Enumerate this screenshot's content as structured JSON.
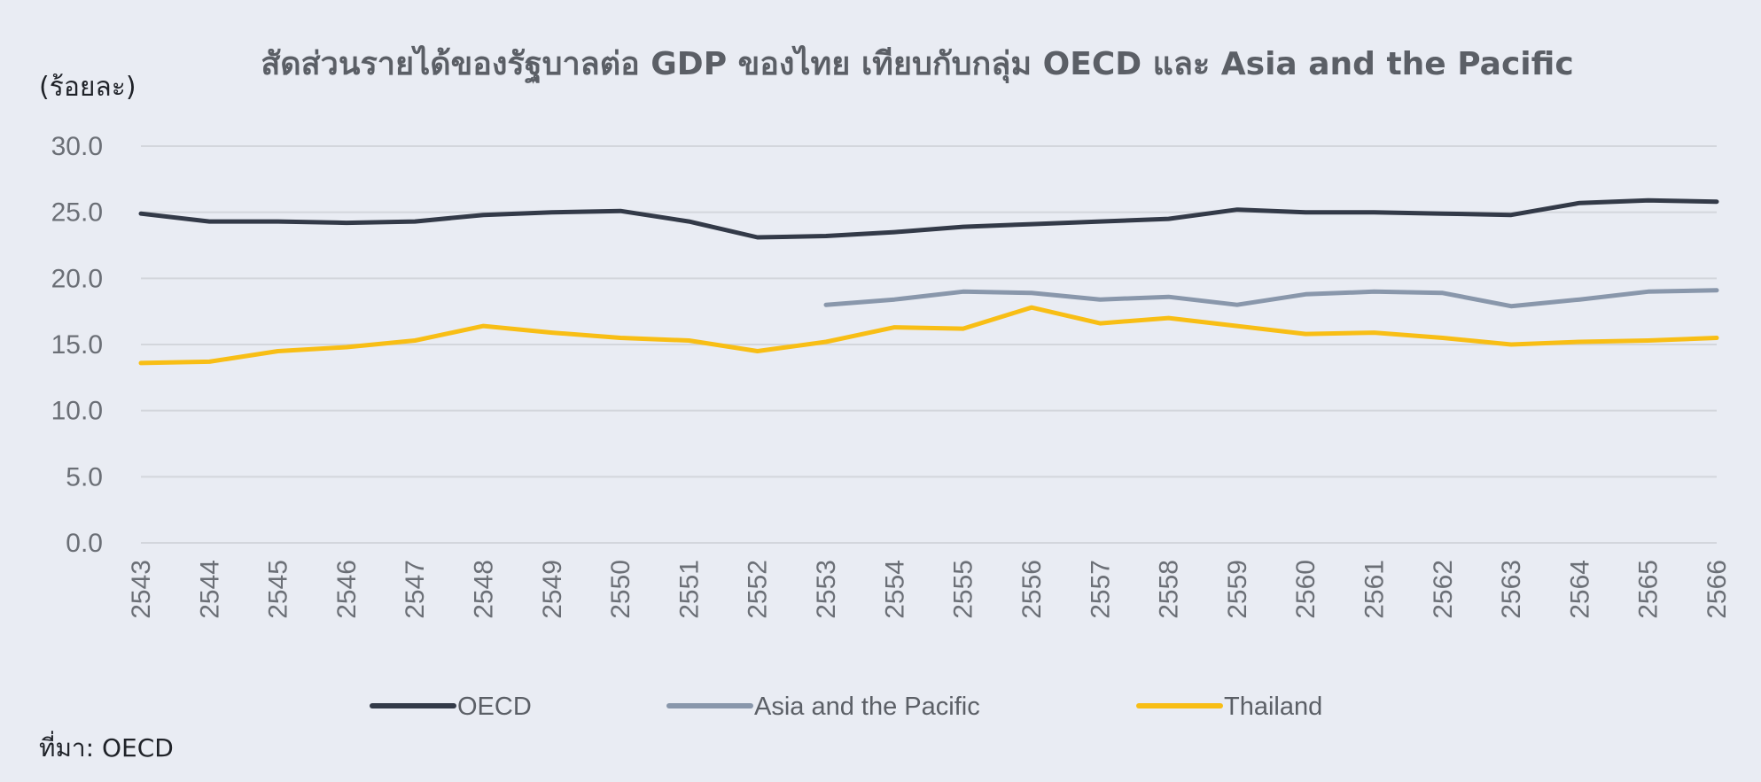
{
  "chart_data": {
    "type": "line",
    "title": "สัดส่วนรายได้ของรัฐบาลต่อ GDP ของไทย เทียบกับกลุ่ม OECD และ Asia and the Pacific",
    "ylabel": "(ร้อยละ)",
    "xlabel": "",
    "ylim": [
      0,
      30
    ],
    "yticks": [
      "0.0",
      "5.0",
      "10.0",
      "15.0",
      "20.0",
      "25.0",
      "30.0"
    ],
    "grid": true,
    "legend_position": "bottom",
    "categories": [
      "2543",
      "2544",
      "2545",
      "2546",
      "2547",
      "2548",
      "2549",
      "2550",
      "2551",
      "2552",
      "2553",
      "2554",
      "2555",
      "2556",
      "2557",
      "2558",
      "2559",
      "2560",
      "2561",
      "2562",
      "2563",
      "2564",
      "2565",
      "2566"
    ],
    "series": [
      {
        "name": "OECD",
        "color": "#333a48",
        "values": [
          24.9,
          24.3,
          24.3,
          24.2,
          24.3,
          24.8,
          25.0,
          25.1,
          24.3,
          23.1,
          23.2,
          23.5,
          23.9,
          24.1,
          24.3,
          24.5,
          25.2,
          25.0,
          25.0,
          24.9,
          24.8,
          25.7,
          25.9,
          25.8
        ]
      },
      {
        "name": "Asia and the Pacific",
        "color": "#8997ab",
        "values": [
          null,
          null,
          null,
          null,
          null,
          null,
          null,
          null,
          null,
          null,
          18.0,
          18.4,
          19.0,
          18.9,
          18.4,
          18.6,
          18.0,
          18.8,
          19.0,
          18.9,
          17.9,
          18.4,
          19.0,
          19.1
        ]
      },
      {
        "name": "Thailand",
        "color": "#f8be15",
        "values": [
          13.6,
          13.7,
          14.5,
          14.8,
          15.3,
          16.4,
          15.9,
          15.5,
          15.3,
          14.5,
          15.2,
          16.3,
          16.2,
          17.8,
          16.6,
          17.0,
          16.4,
          15.8,
          15.9,
          15.5,
          15.0,
          15.2,
          15.3,
          15.5
        ]
      }
    ]
  },
  "source": "ที่มา: OECD"
}
